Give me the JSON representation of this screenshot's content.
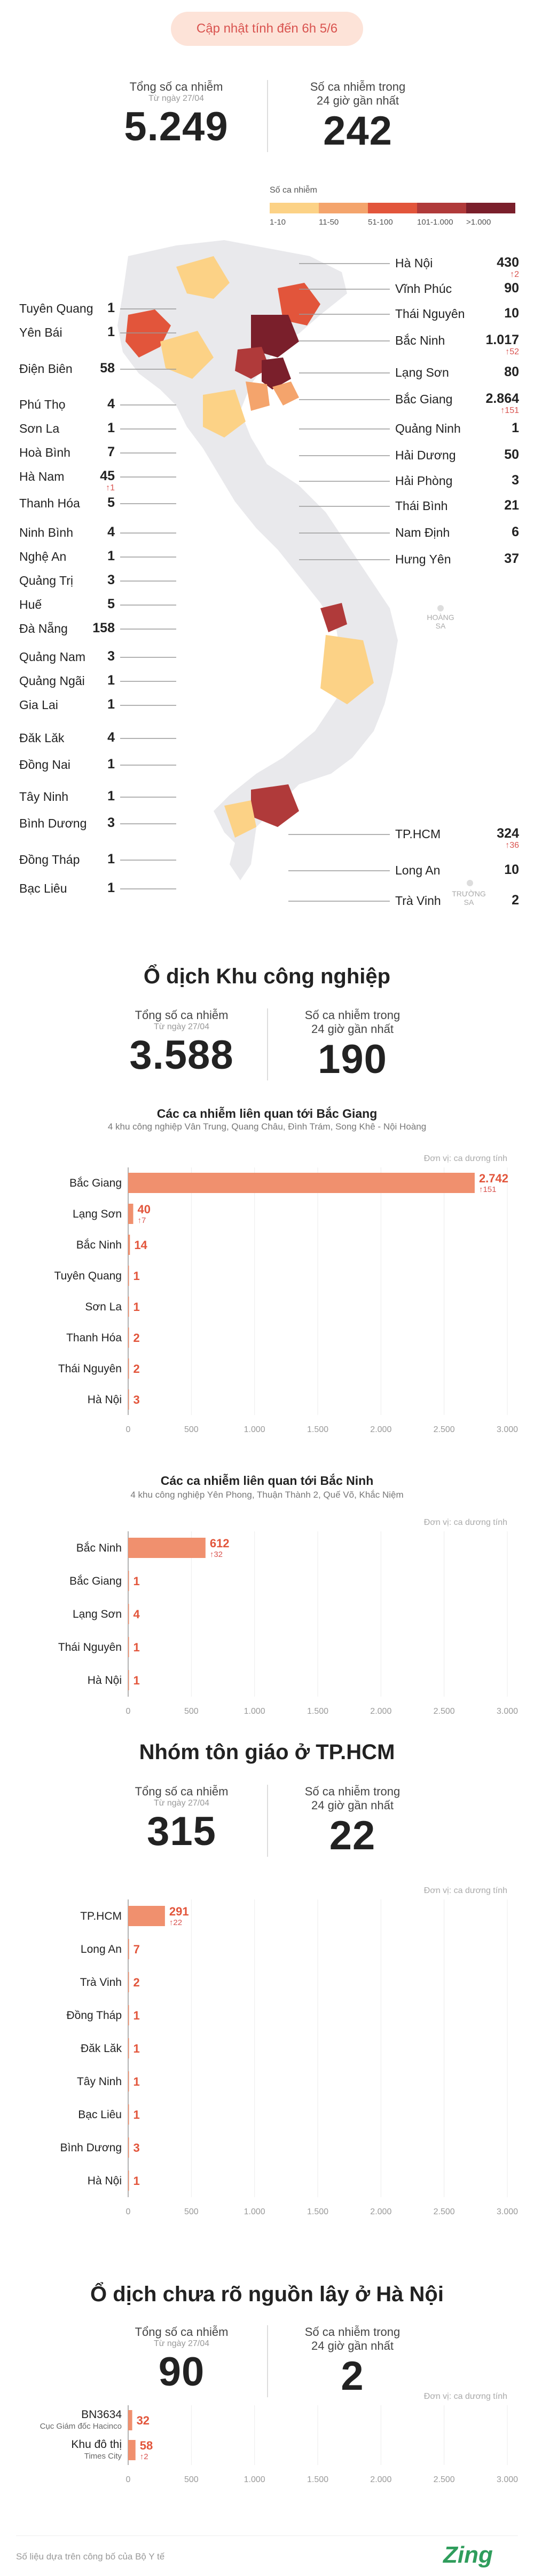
{
  "header": {
    "update_label": "Cập nhật tính đến 6h 5/6",
    "total_label": "Tổng số ca nhiễm",
    "total_since": "Từ ngày 27/04",
    "total_value": "5.249",
    "new_label_1": "Số ca nhiễm trong",
    "new_label_2": "24 giờ gần nhất",
    "new_value": "242"
  },
  "legend": {
    "title": "Số ca nhiễm",
    "items": [
      {
        "label": "1-10",
        "color": "#fcd286"
      },
      {
        "label": "11-50",
        "color": "#f4a46c"
      },
      {
        "label": "51-100",
        "color": "#e2553b"
      },
      {
        "label": "101-1.000",
        "color": "#b03a3a"
      },
      {
        "label": ">1.000",
        "color": "#7a1f2b"
      }
    ]
  },
  "map": {
    "left_items": [
      {
        "name": "Tuyên Quang",
        "value": "1"
      },
      {
        "name": "Yên Bái",
        "value": "1"
      },
      {
        "name": "Điện Biên",
        "value": "58"
      },
      {
        "name": "Phú Thọ",
        "value": "4"
      },
      {
        "name": "Sơn La",
        "value": "1"
      },
      {
        "name": "Hoà Bình",
        "value": "7"
      },
      {
        "name": "Hà Nam",
        "value": "45",
        "inc": "↑1"
      },
      {
        "name": "Thanh Hóa",
        "value": "5"
      },
      {
        "name": "Ninh Bình",
        "value": "4"
      },
      {
        "name": "Nghệ An",
        "value": "1"
      },
      {
        "name": "Quảng Trị",
        "value": "3"
      },
      {
        "name": "Huế",
        "value": "5"
      },
      {
        "name": "Đà Nẵng",
        "value": "158"
      },
      {
        "name": "Quảng Nam",
        "value": "3"
      },
      {
        "name": "Quảng Ngãi",
        "value": "1"
      },
      {
        "name": "Gia Lai",
        "value": "1"
      },
      {
        "name": "Đăk Lăk",
        "value": "4"
      },
      {
        "name": "Đồng Nai",
        "value": "1"
      },
      {
        "name": "Tây Ninh",
        "value": "1"
      },
      {
        "name": "Bình Dương",
        "value": "3"
      },
      {
        "name": "Đồng Tháp",
        "value": "1"
      },
      {
        "name": "Bạc Liêu",
        "value": "1"
      }
    ],
    "right_items": [
      {
        "name": "Hà Nội",
        "value": "430",
        "inc": "↑2"
      },
      {
        "name": "Vĩnh Phúc",
        "value": "90"
      },
      {
        "name": "Thái Nguyên",
        "value": "10"
      },
      {
        "name": "Bắc Ninh",
        "value": "1.017",
        "inc": "↑52"
      },
      {
        "name": "Lạng Sơn",
        "value": "80"
      },
      {
        "name": "Bắc Giang",
        "value": "2.864",
        "inc": "↑151"
      },
      {
        "name": "Quảng Ninh",
        "value": "1"
      },
      {
        "name": "Hải Dương",
        "value": "50"
      },
      {
        "name": "Hải Phòng",
        "value": "3"
      },
      {
        "name": "Thái Bình",
        "value": "21"
      },
      {
        "name": "Nam Định",
        "value": "6"
      },
      {
        "name": "Hưng Yên",
        "value": "37"
      }
    ],
    "south_right_items": [
      {
        "name": "TP.HCM",
        "value": "324",
        "inc": "↑36"
      },
      {
        "name": "Long An",
        "value": "10"
      },
      {
        "name": "Trà Vinh",
        "value": "2"
      }
    ],
    "islands": {
      "hoang_sa": "HOÀNG\nSA",
      "truong_sa": "TRƯỜNG\nSA"
    }
  },
  "industrial": {
    "title": "Ổ dịch Khu công nghiệp",
    "total_label": "Tổng số ca nhiễm",
    "total_since": "Từ ngày 27/04",
    "total_value": "3.588",
    "new_label_1": "Số ca nhiễm trong",
    "new_label_2": "24 giờ gần nhất",
    "new_value": "190"
  },
  "religious": {
    "title": "Nhóm tôn giáo ở TP.HCM",
    "total_label": "Tổng số ca nhiễm",
    "total_since": "Từ ngày 27/04",
    "total_value": "315",
    "new_label_1": "Số ca nhiễm trong",
    "new_label_2": "24 giờ gần nhất",
    "new_value": "22"
  },
  "hanoi": {
    "title": "Ổ dịch chưa rõ nguồn lây ở Hà Nội",
    "total_label": "Tổng số ca nhiễm",
    "total_since": "Từ ngày 27/04",
    "total_value": "90",
    "new_label_1": "Số ca nhiễm trong",
    "new_label_2": "24 giờ gần nhất",
    "new_value": "2"
  },
  "footer": {
    "source": "Số liệu dựa trên công bố của Bộ Y tế",
    "brand": "Zing"
  },
  "chart_data": [
    {
      "type": "bar",
      "title": "Các ca nhiễm liên quan tới Bắc Giang",
      "subtitle": "4 khu công nghiệp Vân Trung, Quang Châu, Đình Trám, Song Khê - Nội Hoàng",
      "unit": "Đơn vị: ca dương tính",
      "categories": [
        "Bắc Giang",
        "Lạng Sơn",
        "Bắc Ninh",
        "Tuyên Quang",
        "Sơn La",
        "Thanh Hóa",
        "Thái Nguyên",
        "Hà Nội"
      ],
      "values": [
        2742,
        40,
        14,
        1,
        1,
        2,
        2,
        3
      ],
      "value_labels": [
        "2.742",
        "40",
        "14",
        "1",
        "1",
        "2",
        "2",
        "3"
      ],
      "increments": [
        "↑151",
        "↑7",
        "",
        "",
        "",
        "",
        "",
        ""
      ],
      "xticks": [
        "0",
        "500",
        "1.000",
        "1.500",
        "2.000",
        "2.500",
        "3.000"
      ],
      "xlim": [
        0,
        3000
      ]
    },
    {
      "type": "bar",
      "title": "Các ca nhiễm liên quan tới Bắc Ninh",
      "subtitle": "4 khu công nghiệp Yên Phong, Thuận Thành 2, Quế Võ, Khắc Niệm",
      "unit": "Đơn vị: ca dương tính",
      "categories": [
        "Bắc Ninh",
        "Bắc Giang",
        "Lạng Sơn",
        "Thái Nguyên",
        "Hà Nội"
      ],
      "values": [
        612,
        1,
        4,
        1,
        1
      ],
      "value_labels": [
        "612",
        "1",
        "4",
        "1",
        "1"
      ],
      "increments": [
        "↑32",
        "",
        "",
        "",
        ""
      ],
      "xticks": [
        "0",
        "500",
        "1.000",
        "1.500",
        "2.000",
        "2.500",
        "3.000"
      ],
      "xlim": [
        0,
        3000
      ]
    },
    {
      "type": "bar",
      "title": "",
      "subtitle": "",
      "unit": "Đơn vị: ca dương tính",
      "categories": [
        "TP.HCM",
        "Long An",
        "Trà Vinh",
        "Đồng Tháp",
        "Đăk Lăk",
        "Tây Ninh",
        "Bạc Liêu",
        "Bình Dương",
        "Hà Nội"
      ],
      "values": [
        291,
        7,
        2,
        1,
        1,
        1,
        1,
        3,
        1
      ],
      "value_labels": [
        "291",
        "7",
        "2",
        "1",
        "1",
        "1",
        "1",
        "3",
        "1"
      ],
      "increments": [
        "↑22",
        "",
        "",
        "",
        "",
        "",
        "",
        "",
        ""
      ],
      "xticks": [
        "0",
        "500",
        "1.000",
        "1.500",
        "2.000",
        "2.500",
        "3.000"
      ],
      "xlim": [
        0,
        3000
      ]
    },
    {
      "type": "bar",
      "title": "",
      "subtitle": "",
      "unit": "Đơn vị: ca dương tính",
      "categories": [
        "BN3634|Cục Giám đốc Hacinco",
        "Khu đô thị|Times City"
      ],
      "values": [
        32,
        58
      ],
      "value_labels": [
        "32",
        "58"
      ],
      "increments": [
        "",
        "↑2"
      ],
      "xticks": [
        "0",
        "500",
        "1.000",
        "1.500",
        "2.000",
        "2.500",
        "3.000"
      ],
      "xlim": [
        0,
        3000
      ]
    }
  ]
}
